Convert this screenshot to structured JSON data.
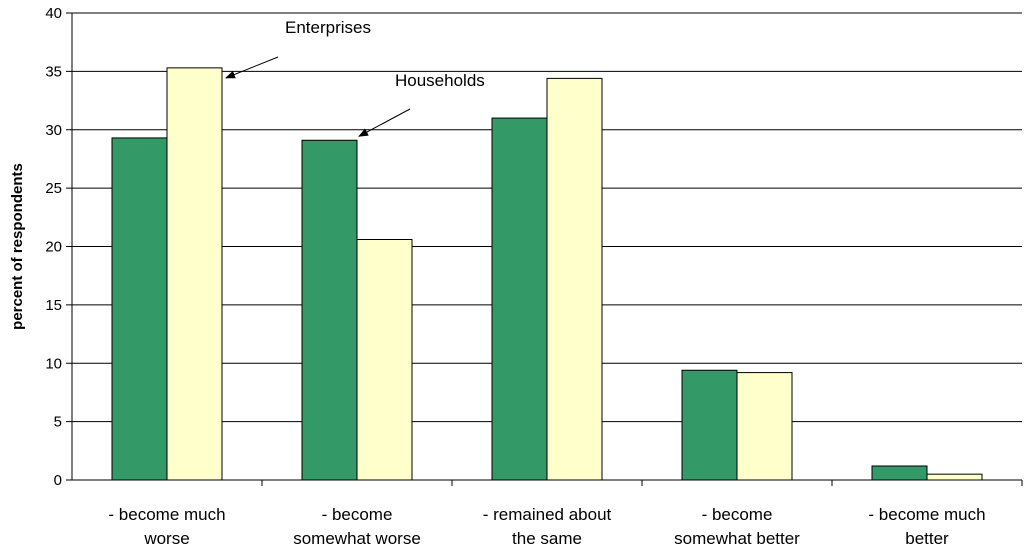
{
  "chart_data": {
    "type": "bar",
    "categories": [
      [
        "- become much",
        "worse"
      ],
      [
        "- become",
        "somewhat worse"
      ],
      [
        "- remained about",
        "the same"
      ],
      [
        "- become",
        "somewhat better"
      ],
      [
        "- become much",
        "better"
      ]
    ],
    "series": [
      {
        "name": "Households",
        "color": "#339966",
        "values": [
          29.3,
          29.1,
          31.0,
          9.4,
          1.2
        ]
      },
      {
        "name": "Enterprises",
        "color": "#FFFFCC",
        "values": [
          35.3,
          20.6,
          34.4,
          9.2,
          0.5
        ]
      }
    ],
    "ylabel": "percent of respondents",
    "xlabel": "",
    "title": "",
    "ylim": [
      0,
      40
    ],
    "yticks": [
      0,
      5,
      10,
      15,
      20,
      25,
      30,
      35,
      40
    ],
    "grid": true,
    "annotations": [
      {
        "text": "Enterprises",
        "series": 1,
        "category": 0
      },
      {
        "text": "Households",
        "series": 0,
        "category": 1
      }
    ]
  }
}
